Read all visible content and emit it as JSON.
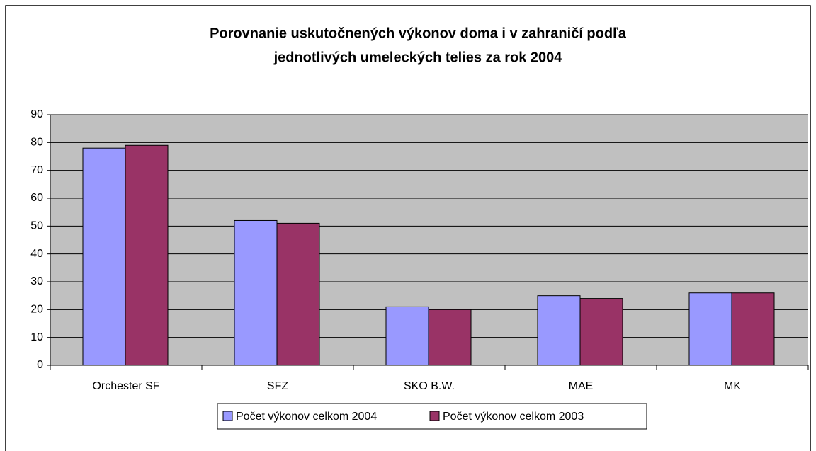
{
  "chart_data": {
    "type": "bar",
    "title": [
      "Porovnanie uskutočnených výkonov doma i v zahraničí podľa",
      "jednotlivých umeleckých telies za rok 2004"
    ],
    "categories": [
      "Orchester SF",
      "SFZ",
      "SKO B.W.",
      "MAE",
      "MK"
    ],
    "series": [
      {
        "name": "Počet výkonov celkom 2004",
        "color": "#9999ff",
        "values": [
          78,
          52,
          21,
          25,
          26
        ]
      },
      {
        "name": "Počet výkonov celkom 2003",
        "color": "#993366",
        "values": [
          79,
          51,
          20,
          24,
          26
        ]
      }
    ],
    "ylim": [
      0,
      90
    ],
    "yticks": [
      0,
      10,
      20,
      30,
      40,
      50,
      60,
      70,
      80,
      90
    ],
    "grid": true,
    "legend": "bottom"
  }
}
